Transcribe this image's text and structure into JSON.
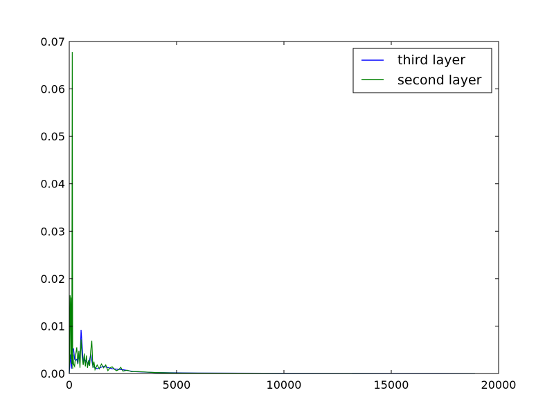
{
  "chart_data": {
    "type": "line",
    "title": "",
    "xlabel": "",
    "ylabel": "",
    "xlim": [
      0,
      20000
    ],
    "ylim": [
      0,
      0.07
    ],
    "x_ticks": [
      0,
      5000,
      10000,
      15000,
      20000
    ],
    "x_tick_labels": [
      "0",
      "5000",
      "10000",
      "15000",
      "20000"
    ],
    "y_ticks": [
      0,
      0.01,
      0.02,
      0.03,
      0.04,
      0.05,
      0.06,
      0.07
    ],
    "y_tick_labels": [
      "0.00",
      "0.01",
      "0.02",
      "0.03",
      "0.04",
      "0.05",
      "0.06",
      "0.07"
    ],
    "grid": false,
    "legend_position": "top-right",
    "series": [
      {
        "name": "third layer",
        "color": "#0000ff",
        "x": [
          0,
          50,
          100,
          150,
          200,
          250,
          300,
          350,
          400,
          450,
          500,
          550,
          600,
          650,
          700,
          800,
          900,
          1000,
          1100,
          1300,
          1600,
          2000,
          2500,
          3000,
          4000,
          6000,
          10000,
          15000,
          18900
        ],
        "values": [
          0,
          0.004,
          0.001,
          0.005,
          0.0052,
          0.003,
          0.0028,
          0.003,
          0.002,
          0.004,
          0.0025,
          0.0092,
          0.006,
          0.002,
          0.003,
          0.0025,
          0.002,
          0.004,
          0.0015,
          0.001,
          0.0015,
          0.001,
          0.0008,
          0.0004,
          0.0002,
          0.0001,
          5e-05,
          2e-05,
          1e-05
        ]
      },
      {
        "name": "second layer",
        "color": "#008000",
        "x": [
          0,
          20,
          40,
          60,
          80,
          100,
          120,
          140,
          160,
          180,
          200,
          250,
          300,
          350,
          400,
          450,
          500,
          550,
          600,
          650,
          700,
          750,
          800,
          850,
          900,
          950,
          1000,
          1050,
          1100,
          1150,
          1200,
          1300,
          1400,
          1500,
          1600,
          1700,
          1800,
          1900,
          2000,
          2100,
          2200,
          2300,
          2400,
          2500,
          2700,
          2900,
          3200,
          3600,
          4000,
          5000,
          6000,
          8000,
          10000,
          12000,
          15000,
          18000,
          18900
        ],
        "values": [
          0,
          0.004,
          0.0165,
          0.0145,
          0.003,
          0.016,
          0.002,
          0.0678,
          0.001,
          0.004,
          0.002,
          0.0015,
          0.004,
          0.0055,
          0.002,
          0.0048,
          0.0012,
          0.0072,
          0.0035,
          0.0018,
          0.0042,
          0.0015,
          0.0038,
          0.0012,
          0.0028,
          0.0016,
          0.0048,
          0.0069,
          0.0012,
          0.0025,
          0.0008,
          0.0018,
          0.001,
          0.002,
          0.0012,
          0.0018,
          0.0006,
          0.0012,
          0.0014,
          0.0009,
          0.0006,
          0.0008,
          0.0013,
          0.0005,
          0.0007,
          0.0004,
          0.0004,
          0.0003,
          0.0002,
          0.0001,
          8e-05,
          5e-05,
          3e-05,
          2e-05,
          1e-05,
          1e-05,
          1e-05
        ]
      }
    ]
  }
}
